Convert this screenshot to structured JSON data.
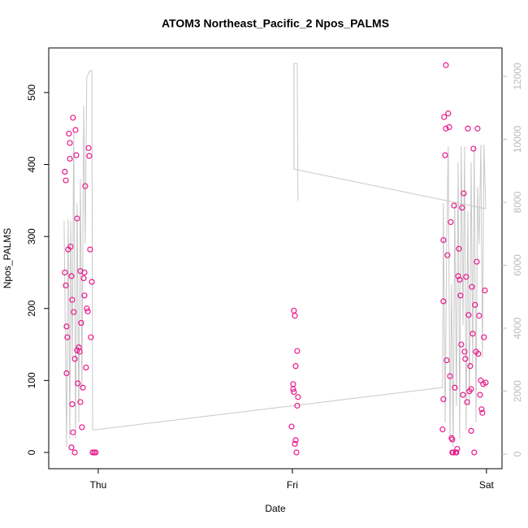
{
  "chart_data": {
    "type": "scatter",
    "title": "ATOM3 Northeast_Pacific_2 Npos_PALMS",
    "xlabel": "Date",
    "ylabel": "Npos_PALMS",
    "xlim": [
      -0.255,
      2.08
    ],
    "xticks": [
      {
        "value": 0,
        "label": "Thu"
      },
      {
        "value": 1,
        "label": "Fri"
      },
      {
        "value": 2,
        "label": "Sat"
      }
    ],
    "ylim": [
      -22.6,
      562
    ],
    "yticks": [
      0,
      100,
      200,
      300,
      400,
      500
    ],
    "y2lim": [
      -465,
      12903
    ],
    "y2ticks": [
      0,
      2000,
      4000,
      6000,
      8000,
      10000,
      12000
    ],
    "series": [
      {
        "type": "scatter",
        "color": "#e8198b",
        "x": [
          -0.172,
          -0.167,
          -0.172,
          -0.167,
          -0.163,
          -0.163,
          -0.159,
          -0.155,
          -0.151,
          -0.146,
          -0.146,
          -0.142,
          -0.138,
          -0.134,
          -0.134,
          -0.13,
          -0.126,
          -0.121,
          -0.117,
          -0.113,
          -0.109,
          -0.105,
          -0.1,
          -0.096,
          -0.092,
          -0.088,
          -0.084,
          -0.079,
          -0.075,
          -0.071,
          -0.067,
          -0.063,
          -0.059,
          -0.054,
          -0.05,
          -0.046,
          -0.042,
          -0.038,
          -0.033,
          -0.029,
          -0.021,
          -0.013,
          -0.138,
          -0.121,
          -0.13,
          -0.109,
          -0.092,
          -0.071,
          0.996,
          1.004,
          1.008,
          1.013,
          1.017,
          1.021,
          1.025,
          1.029,
          1.025,
          1.013,
          1.017,
          1.004,
          1.008,
          1.774,
          1.778,
          1.778,
          1.778,
          1.782,
          1.787,
          1.791,
          1.795,
          1.799,
          1.803,
          1.808,
          1.812,
          1.816,
          1.82,
          1.824,
          1.824,
          1.828,
          1.833,
          1.837,
          1.841,
          1.845,
          1.849,
          1.854,
          1.858,
          1.862,
          1.866,
          1.87,
          1.874,
          1.879,
          1.883,
          1.887,
          1.891,
          1.895,
          1.9,
          1.904,
          1.908,
          1.912,
          1.916,
          1.921,
          1.925,
          1.929,
          1.933,
          1.937,
          1.941,
          1.946,
          1.95,
          1.954,
          1.958,
          1.962,
          1.967,
          1.971,
          1.975,
          1.979,
          1.983,
          1.987,
          1.992,
          1.996,
          1.921,
          1.791
        ],
        "values": [
          390,
          378,
          250,
          232,
          175,
          110,
          160,
          282,
          443,
          430,
          408,
          286,
          245,
          212,
          67,
          465,
          195,
          130,
          448,
          413,
          325,
          96,
          146,
          140,
          252,
          180,
          35,
          90,
          242,
          218,
          370,
          118,
          200,
          196,
          423,
          412,
          282,
          160,
          237,
          0,
          0,
          0,
          7,
          0,
          28,
          142,
          70,
          250,
          36,
          88,
          197,
          190,
          120,
          0,
          141,
          77,
          65,
          12,
          17,
          95,
          84,
          32,
          74,
          210,
          295,
          466,
          413,
          450,
          128,
          274,
          471,
          452,
          106,
          320,
          20,
          18,
          0,
          0,
          343,
          90,
          0,
          0,
          5,
          245,
          283,
          240,
          218,
          150,
          340,
          80,
          360,
          140,
          130,
          244,
          70,
          450,
          191,
          85,
          120,
          88,
          230,
          165,
          422,
          0,
          205,
          140,
          265,
          450,
          137,
          190,
          80,
          100,
          60,
          55,
          95,
          160,
          225,
          97,
          30,
          538
        ]
      },
      {
        "type": "line",
        "axis": "y2",
        "color": "#c8c8c8",
        "x": [
          -0.176,
          -0.163,
          -0.155,
          -0.146,
          -0.142,
          -0.134,
          -0.126,
          -0.117,
          -0.109,
          -0.1,
          -0.092,
          -0.084,
          -0.075,
          -0.067,
          -0.059,
          -0.05,
          -0.042,
          -0.033,
          -0.029,
          -0.013,
          1.774,
          1.778,
          1.787,
          1.795,
          1.803,
          1.812,
          1.82,
          1.828,
          1.837,
          1.845,
          1.854,
          1.862,
          1.87,
          1.879,
          1.887,
          1.895,
          1.904,
          1.912,
          1.921,
          1.929,
          1.937,
          1.946,
          1.954,
          1.962,
          1.971,
          1.979,
          1.987,
          1.996,
          1.008,
          1.008,
          1.025,
          1.029
        ],
        "values": [
          7405,
          232,
          7456,
          490,
          7405,
          3070,
          10294,
          490,
          7972,
          1006,
          8746,
          2038,
          11068,
          6682,
          11971,
          12100,
          12178,
          12178,
          774,
          774,
          2116,
          7972,
          1006,
          6682,
          9778,
          490,
          5392,
          232,
          7972,
          1522,
          9262,
          490,
          9778,
          4102,
          9778,
          748,
          7714,
          1522,
          9262,
          2812,
          9778,
          1006,
          8488,
          6682,
          9830,
          3070,
          9830,
          7792,
          9056,
          12410,
          12410,
          8050
        ]
      }
    ]
  }
}
